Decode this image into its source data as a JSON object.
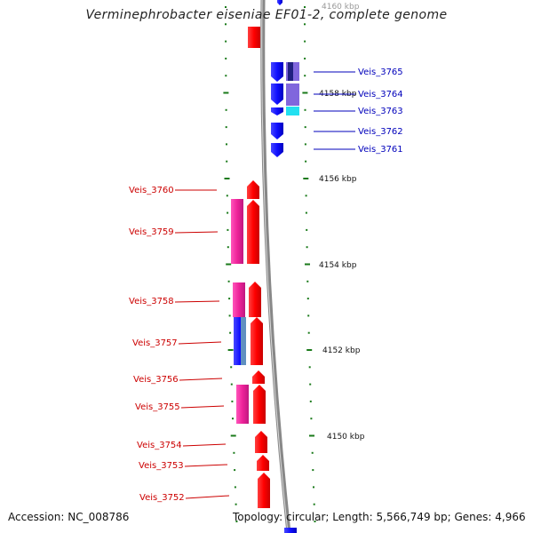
{
  "title": "Verminephrobacter eiseniae EF01-2, complete genome",
  "accession_text": "Accession: NC_008786",
  "summary_text": "Topology: circular; Length: 5,566,749 bp; Genes: 4,966",
  "kbp_labels": [
    "4160 kbp",
    "4158 kbp",
    "4156 kbp",
    "4154 kbp",
    "4152 kbp",
    "4150 kbp"
  ],
  "genes_right": [
    "Veis_3765",
    "Veis_3764",
    "Veis_3763",
    "Veis_3762",
    "Veis_3761"
  ],
  "genes_left": [
    "Veis_3760",
    "Veis_3759",
    "Veis_3758",
    "Veis_3757",
    "Veis_3756",
    "Veis_3755",
    "Veis_3754",
    "Veis_3753",
    "Veis_3752"
  ],
  "colors": {
    "forward_gene": "#ff0000",
    "reverse_gene": "#1010ff",
    "forward_label": "#cc0000",
    "reverse_label": "#0000bb",
    "cog_pink": "#ee2299",
    "cog_lavender": "#8066dd",
    "cog_cyan": "#22e0f0",
    "cog_navy": "#202080",
    "tick_green": "#1a7a1a",
    "backbone": "#888888"
  }
}
